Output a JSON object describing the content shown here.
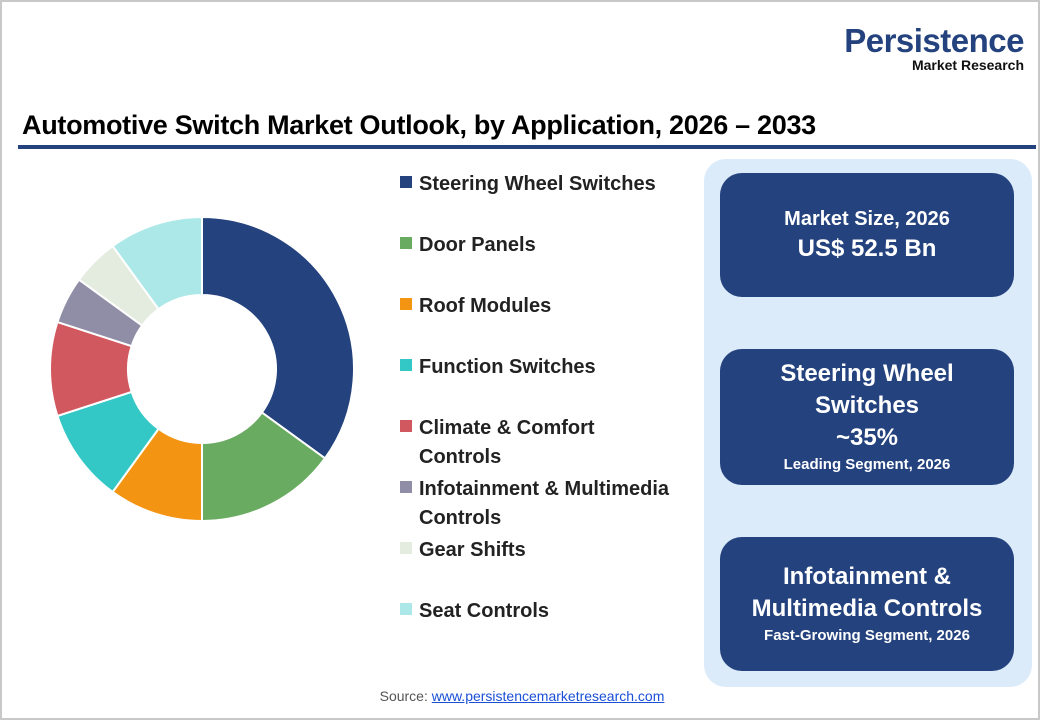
{
  "logo": {
    "line1": "Persistence",
    "line2": "Market Research"
  },
  "title": "Automotive Switch Market Outlook, by Application, 2026 – 2033",
  "chart_data": {
    "type": "pie",
    "donut": true,
    "title": "Automotive Switch Market Outlook, by Application, 2026 – 2033",
    "unit": "%",
    "legend_position": "right",
    "categories": [
      "Steering Wheel Switches",
      "Door Panels",
      "Roof Modules",
      "Function Switches",
      "Climate & Comfort Controls",
      "Infotainment & Multimedia Controls",
      "Gear Shifts",
      "Seat Controls"
    ],
    "values": [
      35,
      15,
      10,
      10,
      10,
      5,
      5,
      10
    ],
    "colors": [
      "#24427e",
      "#6aab62",
      "#f39512",
      "#33c8c6",
      "#d2585f",
      "#908ea6",
      "#e4ece0",
      "#ace8e8"
    ]
  },
  "cards": [
    {
      "label": "Market Size, 2026",
      "value": "US$ 52.5 Bn"
    },
    {
      "label1": "Steering Wheel",
      "label2": "Switches",
      "value": "~35%",
      "sub": "Leading Segment, 2026"
    },
    {
      "label1": "Infotainment &",
      "label2": "Multimedia Controls",
      "sub": "Fast-Growing Segment, 2026"
    }
  ],
  "source": {
    "label": "Source:",
    "link": "www.persistencemarketresearch.com"
  }
}
